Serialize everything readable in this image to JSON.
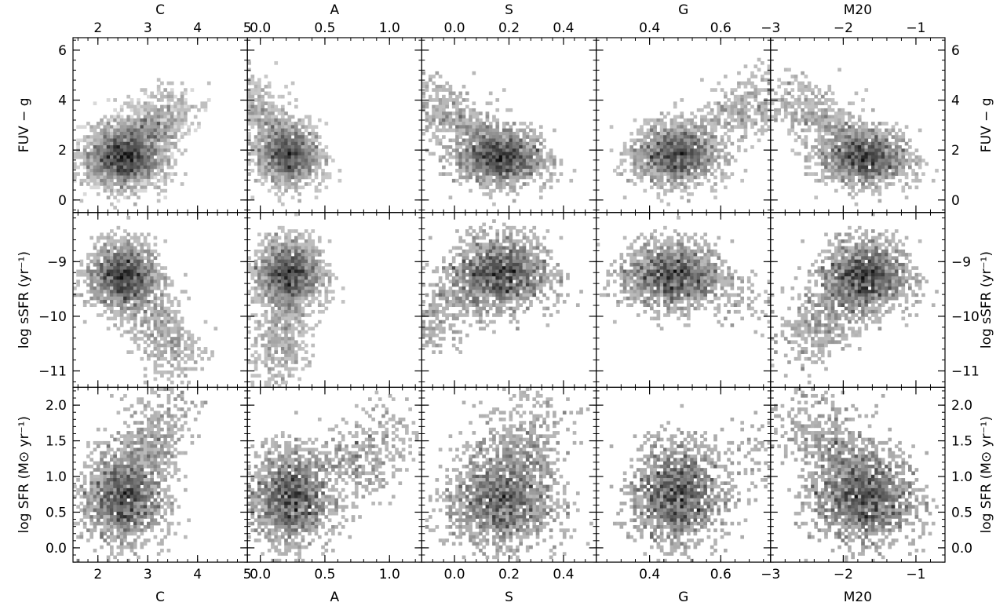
{
  "chart_data": {
    "type": "heatmap",
    "layout": {
      "rows": 3,
      "cols": 5
    },
    "colormap": "grayscale (darker = more galaxies)",
    "columns": [
      {
        "label": "C",
        "xlim": [
          1.5,
          5.0
        ],
        "ticks": [
          2,
          3,
          4,
          5
        ],
        "tick_labels": [
          "2",
          "3",
          "4",
          "5"
        ]
      },
      {
        "label": "A",
        "xlim": [
          -0.1,
          1.25
        ],
        "ticks": [
          0.0,
          0.5,
          1.0
        ],
        "tick_labels": [
          "0.0",
          "0.5",
          "1.0"
        ]
      },
      {
        "label": "S",
        "xlim": [
          -0.12,
          0.52
        ],
        "ticks": [
          0.0,
          0.2,
          0.4
        ],
        "tick_labels": [
          "0.0",
          "0.2",
          "0.4"
        ]
      },
      {
        "label": "G",
        "xlim": [
          0.25,
          0.74
        ],
        "ticks": [
          0.4,
          0.6
        ],
        "tick_labels": [
          "0.4",
          "0.6"
        ]
      },
      {
        "label": "M20",
        "xlim": [
          -3.0,
          -0.6
        ],
        "ticks": [
          -3,
          -2,
          -1
        ],
        "tick_labels": [
          "−3",
          "−2",
          "−1"
        ]
      }
    ],
    "rows": [
      {
        "label": "FUV − g",
        "ylim": [
          -0.5,
          6.5
        ],
        "ticks": [
          0,
          2,
          4,
          6
        ],
        "tick_labels": [
          "0",
          "2",
          "4",
          "6"
        ]
      },
      {
        "label": "log sSFR (yr⁻¹)",
        "ylim": [
          -11.3,
          -8.1
        ],
        "ticks": [
          -11,
          -10,
          -9
        ],
        "tick_labels": [
          "−11",
          "−10",
          "−9"
        ]
      },
      {
        "label": "log SFR (M⊙ yr⁻¹)",
        "ylim": [
          -0.2,
          2.25
        ],
        "ticks": [
          0.0,
          0.5,
          1.0,
          1.5,
          2.0
        ],
        "tick_labels": [
          "0.0",
          "0.5",
          "1.0",
          "1.5",
          "2.0"
        ]
      }
    ],
    "panels": [
      {
        "row": 0,
        "col": 0,
        "peak": [
          2.5,
          1.7
        ],
        "spread": [
          0.38,
          0.6
        ],
        "tail": [
          0.45,
          0.9
        ],
        "tail_len": 2.2
      },
      {
        "row": 0,
        "col": 1,
        "peak": [
          0.22,
          1.8
        ],
        "spread": [
          0.12,
          0.6
        ],
        "tail": [
          -0.12,
          0.85
        ],
        "tail_len": 3.2
      },
      {
        "row": 0,
        "col": 2,
        "peak": [
          0.17,
          1.7
        ],
        "spread": [
          0.08,
          0.55
        ],
        "tail": [
          -0.1,
          0.9
        ],
        "tail_len": 2.8
      },
      {
        "row": 0,
        "col": 3,
        "peak": [
          0.47,
          1.8
        ],
        "spread": [
          0.06,
          0.6
        ],
        "tail": [
          0.1,
          0.95
        ],
        "tail_len": 3.0
      },
      {
        "row": 0,
        "col": 4,
        "peak": [
          -1.7,
          1.7
        ],
        "spread": [
          0.3,
          0.55
        ],
        "tail": [
          -0.35,
          0.85
        ],
        "tail_len": 3.0
      },
      {
        "row": 1,
        "col": 0,
        "peak": [
          2.5,
          -9.25
        ],
        "spread": [
          0.35,
          0.3
        ],
        "tail": [
          0.6,
          -0.8
        ],
        "tail_len": 2.0
      },
      {
        "row": 1,
        "col": 1,
        "peak": [
          0.22,
          -9.2
        ],
        "spread": [
          0.13,
          0.3
        ],
        "tail": [
          -0.05,
          -1.0
        ],
        "tail_len": 1.8
      },
      {
        "row": 1,
        "col": 2,
        "peak": [
          0.17,
          -9.2
        ],
        "spread": [
          0.09,
          0.33
        ],
        "tail": [
          -0.3,
          -0.95
        ],
        "tail_len": 1.5
      },
      {
        "row": 1,
        "col": 3,
        "peak": [
          0.46,
          -9.25
        ],
        "spread": [
          0.07,
          0.3
        ],
        "tail": [
          0.5,
          -0.85
        ],
        "tail_len": 1.8
      },
      {
        "row": 1,
        "col": 4,
        "peak": [
          -1.7,
          -9.25
        ],
        "spread": [
          0.3,
          0.32
        ],
        "tail": [
          -0.55,
          -0.8
        ],
        "tail_len": 1.6
      },
      {
        "row": 2,
        "col": 0,
        "peak": [
          2.5,
          0.7
        ],
        "spread": [
          0.4,
          0.32
        ],
        "tail": [
          0.6,
          0.8
        ],
        "tail_len": 1.6
      },
      {
        "row": 2,
        "col": 1,
        "peak": [
          0.22,
          0.7
        ],
        "spread": [
          0.15,
          0.33
        ],
        "tail": [
          0.7,
          0.7
        ],
        "tail_len": 1.2
      },
      {
        "row": 2,
        "col": 2,
        "peak": [
          0.17,
          0.65
        ],
        "spread": [
          0.1,
          0.33
        ],
        "tail": [
          0.1,
          1.0
        ],
        "tail_len": 1.2
      },
      {
        "row": 2,
        "col": 3,
        "peak": [
          0.47,
          0.75
        ],
        "spread": [
          0.06,
          0.35
        ],
        "tail": [
          0.45,
          0.9
        ],
        "tail_len": 1.5
      },
      {
        "row": 2,
        "col": 4,
        "peak": [
          -1.7,
          0.7
        ],
        "spread": [
          0.35,
          0.32
        ],
        "tail": [
          -0.55,
          0.8
        ],
        "tail_len": 1.5
      }
    ]
  }
}
